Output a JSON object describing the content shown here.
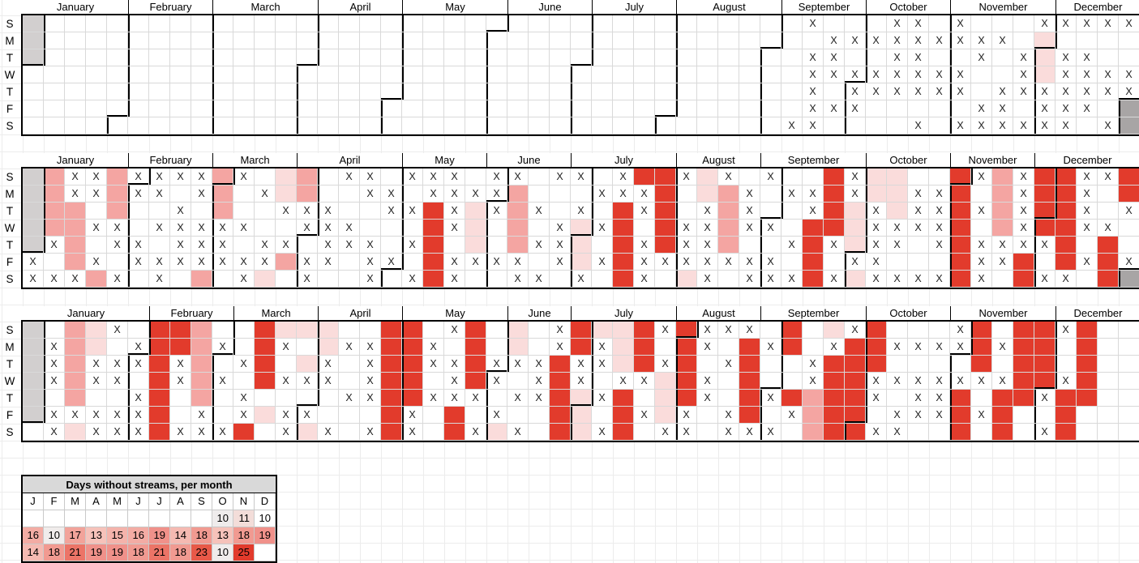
{
  "weekday_labels": [
    "S",
    "M",
    "T",
    "W",
    "T",
    "F",
    "S"
  ],
  "month_labels": [
    "January",
    "February",
    "March",
    "April",
    "May",
    "June",
    "July",
    "August",
    "September",
    "October",
    "November",
    "December"
  ],
  "colors": {
    "shade1": "#FADCDB",
    "shade2": "#F4A5A2",
    "shade3": "#E23B2C",
    "pad_start": "#D2CFCF",
    "pad_end": "#A8A5A5",
    "grid_line": "#D9D9D9",
    "month_border": "#000000",
    "table_header_bg": "#D9D9D9",
    "x_mark": "#1F1F1F"
  },
  "chart_data": {
    "type": "heatmap",
    "subtype": "calendar-year-grids",
    "cell_legend": {
      ".": "no X mark, unshaded",
      "x": "X mark (streamed day)",
      "1": "light pink shading (no stream)",
      "2": "medium pink shading (no stream)",
      "3": "red shading (no stream)",
      "g": "gray padding outside year"
    },
    "years": [
      {
        "name": "year-1",
        "first_weekday": 3,
        "days": 366,
        "month_start_cols": [
          0,
          5,
          9,
          14,
          18,
          23,
          27,
          31,
          36,
          40,
          44,
          49
        ],
        "weeks": [
          "ggg....",
          ".......",
          ".......",
          ".......",
          ".......",
          ".......",
          ".......",
          ".......",
          ".......",
          ".......",
          ".......",
          ".......",
          ".......",
          ".......",
          ".......",
          ".......",
          ".......",
          ".......",
          ".......",
          ".......",
          ".......",
          ".......",
          ".......",
          ".......",
          ".......",
          ".......",
          ".......",
          ".......",
          ".......",
          ".......",
          ".......",
          ".......",
          ".......",
          ".......",
          ".......",
          ".......",
          "......x",
          "x.xxxxx",
          ".xxx.x.",
          ".x.xxx.",
          ".x.xx..",
          "xxxxx..",
          "xxxxx.x",
          ".x.xx..",
          "xx.xx.x",
          ".xx..xx",
          ".x..xxx",
          "..xxx.x",
          "x111xxx",
          "x.xxxxx",
          "x.xxxx.",
          "x..xx.x",
          "x..xxgg"
        ]
      },
      {
        "name": "year-2",
        "first_weekday": 5,
        "days": 365,
        "month_start_cols": [
          0,
          5,
          9,
          13,
          18,
          22,
          26,
          31,
          35,
          40,
          44,
          48
        ],
        "weeks": [
          "gggggxx",
          "2222x.x",
          "xx2222x",
          "xx.x.x2",
          "222xx.x",
          "xx..xx.",
          "xx.x.xx",
          "x.xxxx.",
          "xx.xxx2",
          "222xxx.",
          "x..x.xx",
          ".x..xx1",
          "11x.x2.",
          "22xx.xx",
          "..xxxx.",
          "x..xx..",
          "xx..xxx",
          ".xx..x.",
          "x.x.x.x",
          "xx33333",
          "xxxx.xx",
          ".x111x.",
          "xxx..x.",
          "x2222xx",
          "..x.x.x",
          "x..xxx.",
          "x.x111x",
          ".x.x.x.",
          "xx33333",
          "3xx.xxx",
          "33333x.",
          "x..xxx1",
          "11xxxxx",
          "x2222x.",
          ".xxx.xx",
          "x..x.xx",
          ".x..x.x",
          ".xx3333",
          "3333x.x",
          "xx111x1",
          "11xxxxx",
          "111xx.x",
          ".xxx..x",
          ".xxxx.x",
          "3333333",
          "x.x.xxx",
          "2222xx.",
          "xxxxx33",
          "3333x.x",
          "333333x",
          "xxxx.x.",
          "x..x333",
          "33x..xg"
        ]
      },
      {
        "name": "year-3",
        "first_weekday": 6,
        "days": 365,
        "month_start_cols": [
          0,
          6,
          10,
          14,
          18,
          23,
          26,
          31,
          35,
          40,
          44,
          49
        ],
        "weeks": [
          "gggggg.",
          ".xxx.xx",
          "22222x1",
          "11xx.xx",
          "x.xx.xx",
          ".xx.xxx",
          "3333333",
          "33xx..x",
          "22222xx",
          ".x.x..x",
          "..x.xx3",
          "3333.1.",
          "1x.x.xx",
          "1.1x.x1",
          "11xx..x",
          ".x..x..",
          ".xxxx.x",
          "3333333",
          "33333xx",
          ".xx.x..",
          "x.xxx33",
          "3333x.x",
          "..xx.x1",
          "11x.x.x",
          "..xxx..",
          "xx33333",
          "33xx111",
          "1xx.x.x",
          "111x333",
          "333x.x.",
          "x.x111x",
          "33333xx",
          "xx.xx..",
          "x.x..xx",
          "x33333x",
          ".x..x.x",
          "33..3x.",
          "..xx222",
          "1x33333",
          "x333333",
          "333xx.x",
          ".x.x.xx",
          ".x.xxx.",
          ".x.xxx.",
          "xx.x333",
          "333x.x.",
          ".x.x333",
          "33333..",
          "3333x.x",
          "x..x333",
          "33333..",
          ".......",
          "......."
        ]
      }
    ],
    "summary_table": {
      "title": "Days without streams, per month",
      "columns": [
        "J",
        "F",
        "M",
        "A",
        "M",
        "J",
        "J",
        "A",
        "S",
        "O",
        "N",
        "D"
      ],
      "rows": [
        {
          "values": [
            "",
            "",
            "",
            "",
            "",
            "",
            "",
            "",
            "",
            "10",
            "11",
            "10"
          ],
          "colors": [
            "",
            "",
            "",
            "",
            "",
            "",
            "",
            "",
            "",
            "#EFECEC",
            "#F3DDD9",
            ""
          ]
        },
        {
          "values": [
            "16",
            "10",
            "17",
            "13",
            "15",
            "16",
            "19",
            "14",
            "18",
            "13",
            "18",
            "19"
          ],
          "colors": [
            "#F3ACA4",
            "#F0ECEB",
            "#F2A39A",
            "#F6C2BA",
            "#F4B3AB",
            "#F3ACA4",
            "#F0918A",
            "#F5BAB2",
            "#F19A91",
            "#F6C2BA",
            "#F19A91",
            "#F0918A"
          ]
        },
        {
          "values": [
            "14",
            "18",
            "21",
            "19",
            "19",
            "18",
            "21",
            "18",
            "23",
            "10",
            "25",
            ""
          ],
          "colors": [
            "#F5BAB2",
            "#F19A91",
            "#EC7467",
            "#F0918A",
            "#F0918A",
            "#F19A91",
            "#EC7467",
            "#F19A91",
            "#E85948",
            "#F0ECEB",
            "#E23B2C",
            ""
          ]
        }
      ]
    }
  }
}
